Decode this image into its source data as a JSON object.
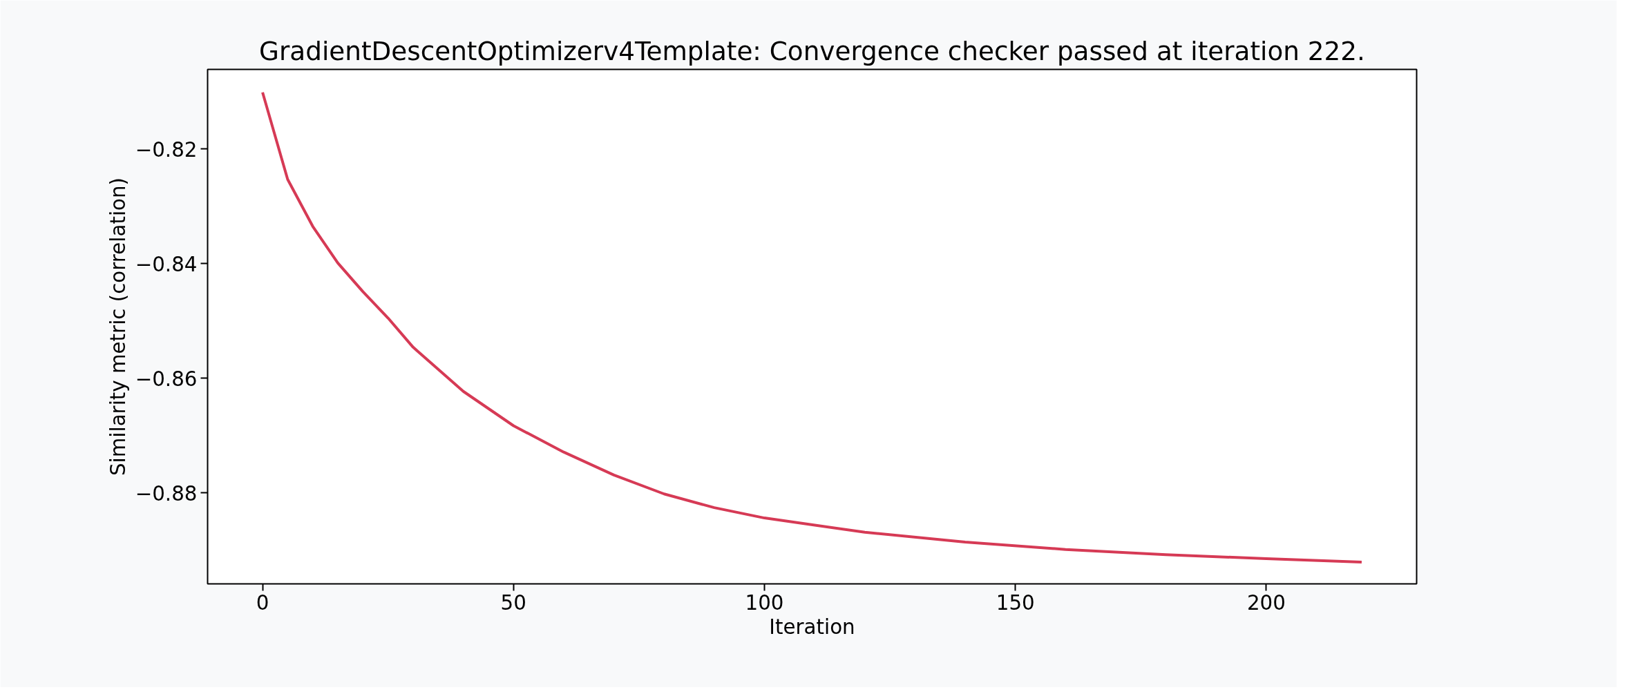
{
  "chart_data": {
    "type": "line",
    "title": "GradientDescentOptimizerv4Template: Convergence checker passed at iteration 222.",
    "xlabel": "Iteration",
    "ylabel": "Similarity metric (correlation)",
    "x": [
      0,
      5,
      10,
      15,
      20,
      25,
      30,
      40,
      50,
      60,
      70,
      80,
      90,
      100,
      120,
      140,
      160,
      180,
      200,
      219
    ],
    "series": [
      {
        "color": "#d63a55",
        "values": [
          -0.8101,
          -0.8253,
          -0.8335,
          -0.8399,
          -0.8449,
          -0.8495,
          -0.8546,
          -0.8623,
          -0.8683,
          -0.8729,
          -0.8769,
          -0.8802,
          -0.8826,
          -0.8844,
          -0.8869,
          -0.8886,
          -0.8899,
          -0.8908,
          -0.8915,
          -0.8921
        ]
      }
    ],
    "xlim": [
      -10.95,
      229.95
    ],
    "ylim": [
      -0.8959,
      -0.8061
    ],
    "xticks": [
      0,
      50,
      100,
      150,
      200
    ],
    "yticks": [
      {
        "value": -0.82,
        "label": "−0.82"
      },
      {
        "value": -0.84,
        "label": "−0.84"
      },
      {
        "value": -0.86,
        "label": "−0.86"
      },
      {
        "value": -0.88,
        "label": "−0.88"
      }
    ],
    "grid": false,
    "marker": "none",
    "line_style": "solid"
  }
}
